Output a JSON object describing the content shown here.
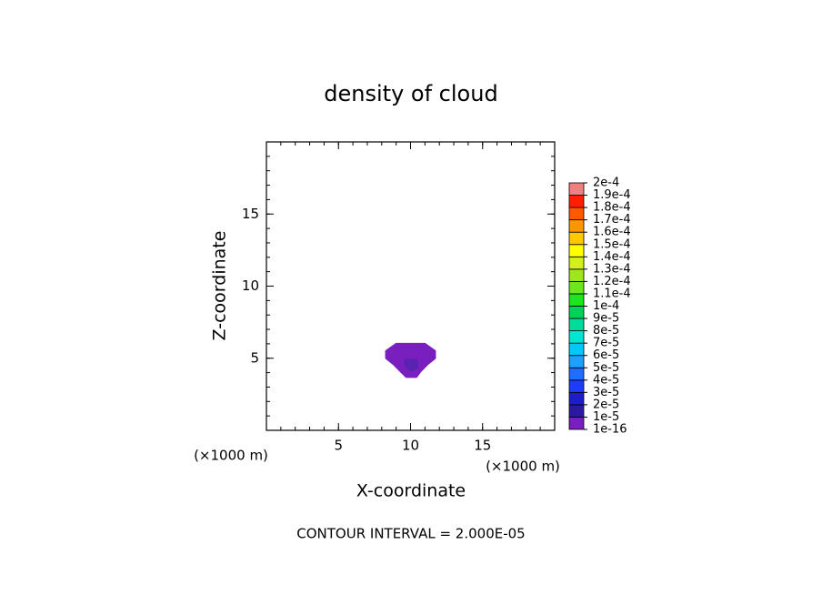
{
  "chart_data": {
    "type": "contour",
    "title": "density of cloud",
    "xlabel": "X-coordinate",
    "ylabel": "Z-coordinate",
    "x_unit_labels": [
      "(×1000 m)",
      "(×1000 m)"
    ],
    "footnote": "CONTOUR INTERVAL = 2.000E-05",
    "xlim": [
      0,
      20
    ],
    "ylim": [
      0,
      20
    ],
    "xticks": [
      5,
      10,
      15
    ],
    "yticks": [
      5,
      10,
      15
    ],
    "fills": [
      {
        "color": "#7a1fbf",
        "x": [
          9.0,
          11.0,
          11.7,
          11.7,
          11.2,
          10.7,
          10.4,
          9.7,
          9.3,
          8.8,
          8.3,
          8.3
        ],
        "y": [
          6.0,
          6.0,
          5.5,
          5.0,
          4.6,
          4.1,
          3.7,
          3.7,
          4.1,
          4.6,
          5.0,
          5.5
        ]
      },
      {
        "color": "#5a22b0",
        "x": [
          9.6,
          10.4,
          10.5,
          10.1,
          9.7
        ],
        "y": [
          4.9,
          4.9,
          4.4,
          4.1,
          4.4
        ]
      }
    ],
    "colorbar": {
      "levels": [
        {
          "value": 1e-16,
          "label": "1e-16"
        },
        {
          "value": 1e-05,
          "label": "1e-5"
        },
        {
          "value": 2e-05,
          "label": "2e-5"
        },
        {
          "value": 3e-05,
          "label": "3e-5"
        },
        {
          "value": 4e-05,
          "label": "4e-5"
        },
        {
          "value": 5e-05,
          "label": "5e-5"
        },
        {
          "value": 6e-05,
          "label": "6e-5"
        },
        {
          "value": 7e-05,
          "label": "7e-5"
        },
        {
          "value": 8e-05,
          "label": "8e-5"
        },
        {
          "value": 9e-05,
          "label": "9e-5"
        },
        {
          "value": 0.0001,
          "label": "1e-4"
        },
        {
          "value": 0.00011,
          "label": "1.1e-4"
        },
        {
          "value": 0.00012,
          "label": "1.2e-4"
        },
        {
          "value": 0.00013,
          "label": "1.3e-4"
        },
        {
          "value": 0.00014,
          "label": "1.4e-4"
        },
        {
          "value": 0.00015,
          "label": "1.5e-4"
        },
        {
          "value": 0.00016,
          "label": "1.6e-4"
        },
        {
          "value": 0.00017,
          "label": "1.7e-4"
        },
        {
          "value": 0.00018,
          "label": "1.8e-4"
        },
        {
          "value": 0.00019,
          "label": "1.9e-4"
        },
        {
          "value": 0.0002,
          "label": "2e-4"
        }
      ],
      "colors": [
        "#7a1fbf",
        "#2b1aa0",
        "#1e1ec8",
        "#1e3cff",
        "#1e6eff",
        "#1ea0ff",
        "#00c8ff",
        "#00e6d2",
        "#00dc9a",
        "#00d25a",
        "#1ee61e",
        "#6ee61e",
        "#a0e61e",
        "#d2f01e",
        "#ffff00",
        "#ffc800",
        "#ff9600",
        "#ff5a00",
        "#ff1e00",
        "#f08080"
      ]
    }
  }
}
